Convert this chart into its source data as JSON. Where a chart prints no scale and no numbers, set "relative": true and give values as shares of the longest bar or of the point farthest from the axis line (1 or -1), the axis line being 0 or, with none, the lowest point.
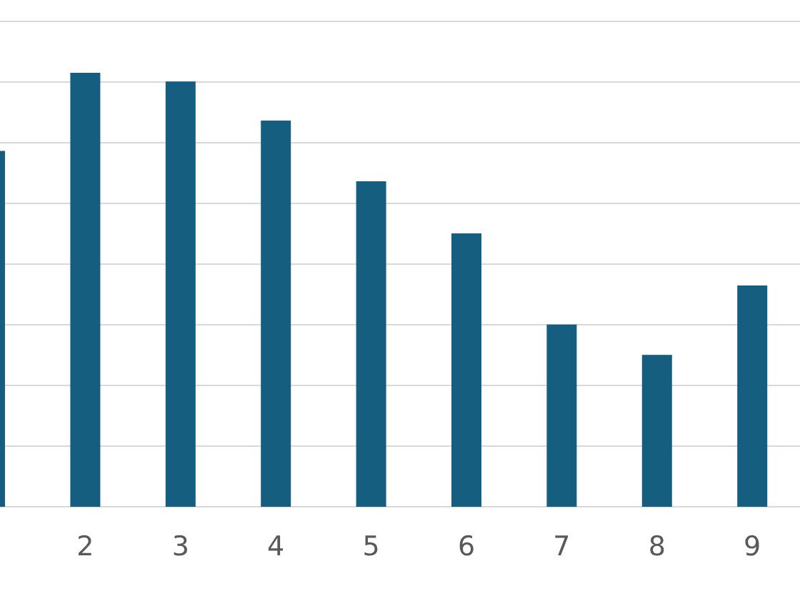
{
  "chart_data": {
    "type": "bar",
    "categories": [
      null,
      "2",
      "3",
      "4",
      "5",
      "6",
      "7",
      "8",
      "9"
    ],
    "values": [
      0.82,
      1,
      0.98,
      0.89,
      0.75,
      0.63,
      0.42,
      0.35,
      0.51
    ],
    "color": "#155e80",
    "relative": true,
    "grid": "y"
  }
}
